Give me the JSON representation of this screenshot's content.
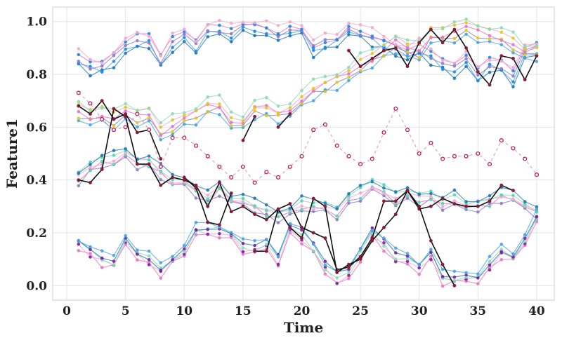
{
  "chart_data": {
    "type": "line",
    "title": "",
    "xlabel": "Time",
    "ylabel": "Feature1",
    "xlim": [
      -1.2,
      41.5
    ],
    "ylim": [
      -0.055,
      1.055
    ],
    "xticks": [
      0,
      5,
      10,
      15,
      20,
      25,
      30,
      35,
      40
    ],
    "yticks": [
      0.0,
      0.2,
      0.4,
      0.6,
      0.8,
      1.0
    ],
    "xtick_labels": [
      "0",
      "5",
      "10",
      "15",
      "20",
      "25",
      "30",
      "35",
      "40"
    ],
    "ytick_labels": [
      "0.0",
      "0.2",
      "0.4",
      "0.6",
      "0.8",
      "1.0"
    ],
    "grid": true,
    "legend": "none",
    "x": [
      1,
      2,
      3,
      4,
      5,
      6,
      7,
      8,
      9,
      10,
      11,
      12,
      13,
      14,
      15,
      16,
      17,
      18,
      19,
      20,
      21,
      22,
      23,
      24,
      25,
      26,
      27,
      28,
      29,
      30,
      31,
      32,
      33,
      34,
      35,
      36,
      37,
      38,
      39,
      40
    ],
    "background_series": {
      "colors": [
        "#1f77b4",
        "#4aa3df",
        "#8e7cc3",
        "#e377c2",
        "#f0a8d0",
        "#8fd9b6"
      ],
      "groups": [
        {
          "marker_color": "#1e88e5",
          "values": [
            0.86,
            0.83,
            0.83,
            0.86,
            0.9,
            0.93,
            0.93,
            0.85,
            0.92,
            0.94,
            0.91,
            0.97,
            0.97,
            0.96,
            0.98,
            0.98,
            0.97,
            0.95,
            0.98,
            0.97,
            0.9,
            0.92,
            0.93,
            0.98,
            0.96,
            0.94,
            0.92,
            0.9,
            0.88,
            0.9,
            0.87,
            0.84,
            0.82,
            0.85,
            0.8,
            0.84,
            0.83,
            0.79,
            0.88,
            0.9
          ],
          "offsets": [
            -0.025,
            -0.012,
            0.0,
            0.012,
            0.025
          ]
        },
        {
          "marker_color": "#e6c619",
          "values": [
            0.66,
            0.64,
            0.65,
            0.63,
            0.65,
            0.64,
            0.65,
            0.58,
            0.61,
            0.63,
            0.65,
            0.68,
            0.68,
            0.63,
            0.62,
            0.67,
            0.67,
            0.65,
            0.67,
            0.71,
            0.74,
            0.76,
            0.78,
            0.8,
            0.84,
            0.86,
            0.89,
            0.92,
            0.89,
            0.89,
            0.95,
            0.95,
            0.96,
            0.97,
            0.96,
            0.95,
            0.94,
            0.92,
            0.88,
            0.89
          ],
          "offsets": [
            -0.03,
            -0.015,
            0.0,
            0.015,
            0.03
          ]
        },
        {
          "marker_color": "#4fd6b0",
          "values": [
            0.41,
            0.45,
            0.47,
            0.48,
            0.5,
            0.47,
            0.47,
            0.43,
            0.4,
            0.4,
            0.36,
            0.33,
            0.37,
            0.33,
            0.33,
            0.3,
            0.28,
            0.27,
            0.28,
            0.31,
            0.3,
            0.3,
            0.28,
            0.32,
            0.35,
            0.38,
            0.36,
            0.33,
            0.34,
            0.33,
            0.34,
            0.31,
            0.33,
            0.3,
            0.31,
            0.32,
            0.34,
            0.34,
            0.31,
            0.28
          ],
          "offsets": [
            -0.02,
            -0.01,
            0.0,
            0.01,
            0.02
          ]
        },
        {
          "marker_color": "#7b1fa2",
          "values": [
            0.16,
            0.13,
            0.1,
            0.09,
            0.18,
            0.12,
            0.1,
            0.06,
            0.1,
            0.14,
            0.21,
            0.21,
            0.21,
            0.19,
            0.15,
            0.14,
            0.16,
            0.1,
            0.21,
            0.19,
            0.14,
            0.07,
            0.03,
            0.04,
            0.12,
            0.2,
            0.16,
            0.11,
            0.1,
            0.07,
            0.12,
            0.03,
            0.03,
            0.04,
            0.03,
            0.08,
            0.13,
            0.11,
            0.18,
            0.26
          ],
          "offsets": [
            -0.02,
            -0.01,
            0.0,
            0.01,
            0.02
          ]
        }
      ]
    },
    "series": [
      {
        "color": "#111111",
        "style": "solid",
        "marker_color": "#8b1a3a",
        "values": [
          0.4,
          0.39,
          0.44,
          0.67,
          0.64,
          0.46,
          0.46,
          0.38,
          0.41,
          0.4,
          0.38,
          0.3,
          0.39,
          0.28,
          0.3,
          0.27,
          0.25,
          0.29,
          0.31,
          0.22,
          0.2,
          0.18,
          0.06,
          0.07,
          0.11,
          0.18,
          0.32,
          0.32,
          0.36,
          0.29,
          0.3,
          0.33,
          0.31,
          0.3,
          0.3,
          0.32,
          0.38,
          0.36,
          null,
          null
        ]
      },
      {
        "color": "#111111",
        "style": "solid",
        "marker_color": "#8b1a3a",
        "values": [
          0.68,
          0.65,
          0.7,
          0.63,
          0.65,
          0.58,
          0.59,
          0.48,
          null,
          0.41,
          0.37,
          0.24,
          0.23,
          0.35,
          null,
          0.13,
          0.13,
          0.29,
          0.22,
          0.18,
          0.33,
          0.3,
          0.05,
          0.08,
          0.1,
          0.17,
          0.22,
          0.27,
          0.36,
          0.3,
          0.17,
          0.08,
          0.0,
          null,
          null,
          null,
          null,
          null,
          null,
          null
        ]
      },
      {
        "color": "#111111",
        "style": "solid",
        "marker_color": "#8b1a3a",
        "values": [
          null,
          null,
          null,
          null,
          null,
          null,
          null,
          null,
          null,
          null,
          null,
          null,
          null,
          null,
          0.55,
          0.64,
          null,
          0.6,
          0.65,
          null,
          null,
          null,
          null,
          0.89,
          0.83,
          0.86,
          0.89,
          0.9,
          0.83,
          0.92,
          0.97,
          0.92,
          0.97,
          0.9,
          0.81,
          0.76,
          0.87,
          0.86,
          0.78,
          0.87
        ]
      },
      {
        "color": "#e07a8f",
        "style": "dashed",
        "marker_color": "#c2185b",
        "values": [
          0.73,
          0.69,
          0.63,
          0.59,
          0.6,
          0.65,
          0.59,
          0.45,
          0.56,
          0.56,
          0.53,
          0.49,
          0.45,
          0.41,
          0.45,
          0.39,
          0.43,
          0.41,
          0.45,
          0.49,
          0.59,
          0.61,
          0.53,
          0.49,
          0.46,
          0.48,
          0.58,
          0.67,
          0.59,
          0.5,
          0.54,
          0.48,
          0.49,
          0.49,
          0.5,
          0.46,
          0.55,
          0.52,
          0.48,
          0.42
        ]
      }
    ]
  }
}
